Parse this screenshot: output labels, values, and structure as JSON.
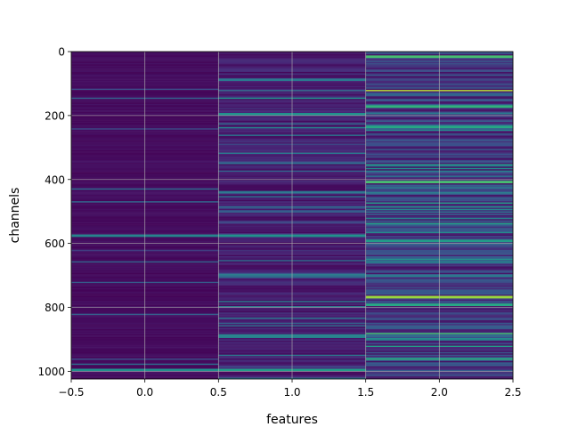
{
  "chart_data": {
    "type": "heatmap",
    "title": "",
    "xlabel": "features",
    "ylabel": "channels",
    "x_ticks": [
      "−0.5",
      "0.0",
      "0.5",
      "1.0",
      "1.5",
      "2.0",
      "2.5"
    ],
    "y_ticks": [
      "0",
      "200",
      "400",
      "600",
      "800",
      "1000"
    ],
    "xlim": [
      -0.5,
      2.5
    ],
    "ylim": [
      1024,
      0
    ],
    "y_inverted": true,
    "grid": true,
    "colormap": "viridis",
    "n_rows": 1024,
    "columns": [
      {
        "x": 0,
        "range": [
          -0.5,
          0.5
        ],
        "base_level": 0.04,
        "bright_bands": [
          {
            "channel": 428,
            "level": 0.35
          },
          {
            "channel": 575,
            "level": 0.45
          },
          {
            "channel": 720,
            "level": 0.3
          },
          {
            "channel": 995,
            "level": 0.5
          }
        ]
      },
      {
        "x": 1,
        "range": [
          0.5,
          1.5
        ],
        "base_level": 0.1,
        "bright_bands": [
          {
            "channel": 85,
            "level": 0.4
          },
          {
            "channel": 195,
            "level": 0.5
          },
          {
            "channel": 260,
            "level": 0.4
          },
          {
            "channel": 440,
            "level": 0.4
          },
          {
            "channel": 575,
            "level": 0.5
          },
          {
            "channel": 700,
            "level": 0.35
          },
          {
            "channel": 885,
            "level": 0.45
          },
          {
            "channel": 995,
            "level": 0.55
          }
        ]
      },
      {
        "x": 2,
        "range": [
          1.5,
          2.5
        ],
        "base_level": 0.18,
        "bright_bands": [
          {
            "channel": 15,
            "level": 0.7
          },
          {
            "channel": 120,
            "level": 0.9
          },
          {
            "channel": 170,
            "level": 0.65
          },
          {
            "channel": 235,
            "level": 0.6
          },
          {
            "channel": 405,
            "level": 0.7
          },
          {
            "channel": 590,
            "level": 0.55
          },
          {
            "channel": 765,
            "level": 0.85
          },
          {
            "channel": 790,
            "level": 0.6
          },
          {
            "channel": 880,
            "level": 0.7
          },
          {
            "channel": 960,
            "level": 0.65
          }
        ]
      }
    ]
  }
}
